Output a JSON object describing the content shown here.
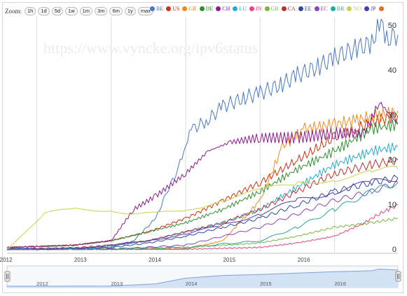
{
  "toolbar": {
    "zoom_label": "Zoom:",
    "buttons": [
      "1h",
      "1d",
      "5d",
      "1w",
      "1m",
      "3m",
      "6m",
      "1y",
      "max"
    ]
  },
  "watermark": "https://www.vyncke.org/ipv6status",
  "chart_data": {
    "type": "line",
    "title": "",
    "xlabel": "",
    "ylabel": "",
    "x_ticks": [
      "2012",
      "2013",
      "2014",
      "2015",
      "2016"
    ],
    "x_range": [
      2011.6,
      2016.85
    ],
    "y_ticks": [
      0,
      10,
      20,
      30,
      40,
      50
    ],
    "ylim": [
      -0.5,
      52
    ],
    "grid": "vertical lines at years",
    "legend": "top, horizontal",
    "navigator_ticks": [
      "2012",
      "2013",
      "2014",
      "2015",
      "2016"
    ],
    "series": [
      {
        "name": "BE",
        "color": "#4a78c4",
        "points": [
          [
            2011.6,
            0.1
          ],
          [
            2012.5,
            0.2
          ],
          [
            2013.0,
            0.5
          ],
          [
            2013.3,
            2
          ],
          [
            2013.6,
            7
          ],
          [
            2013.75,
            13
          ],
          [
            2013.9,
            18
          ],
          [
            2014.0,
            24
          ],
          [
            2014.1,
            27
          ],
          [
            2014.3,
            29
          ],
          [
            2014.5,
            32
          ],
          [
            2014.8,
            34
          ],
          [
            2015.0,
            35
          ],
          [
            2015.3,
            37
          ],
          [
            2015.5,
            39
          ],
          [
            2015.8,
            41
          ],
          [
            2016.0,
            43
          ],
          [
            2016.3,
            45
          ],
          [
            2016.5,
            46
          ],
          [
            2016.6,
            51
          ],
          [
            2016.7,
            47
          ],
          [
            2016.85,
            48
          ]
        ]
      },
      {
        "name": "US",
        "color": "#cc3311",
        "points": [
          [
            2011.6,
            0.5
          ],
          [
            2012.5,
            1
          ],
          [
            2013.0,
            2
          ],
          [
            2013.5,
            4
          ],
          [
            2014.0,
            7
          ],
          [
            2014.5,
            11
          ],
          [
            2015.0,
            15
          ],
          [
            2015.5,
            20
          ],
          [
            2016.0,
            25
          ],
          [
            2016.3,
            27
          ],
          [
            2016.6,
            29
          ],
          [
            2016.85,
            30
          ]
        ]
      },
      {
        "name": "GR",
        "color": "#f08a1c",
        "points": [
          [
            2011.6,
            0
          ],
          [
            2014.0,
            0.1
          ],
          [
            2014.5,
            2
          ],
          [
            2015.0,
            11
          ],
          [
            2015.3,
            23
          ],
          [
            2015.6,
            27
          ],
          [
            2016.0,
            28
          ],
          [
            2016.3,
            29
          ],
          [
            2016.6,
            30
          ],
          [
            2016.85,
            31
          ]
        ]
      },
      {
        "name": "DE",
        "color": "#2f8f2f",
        "points": [
          [
            2011.6,
            0.5
          ],
          [
            2012.5,
            1
          ],
          [
            2013.0,
            2
          ],
          [
            2013.5,
            4
          ],
          [
            2014.0,
            6
          ],
          [
            2014.5,
            9
          ],
          [
            2015.0,
            13
          ],
          [
            2015.5,
            18
          ],
          [
            2016.0,
            22
          ],
          [
            2016.5,
            27
          ],
          [
            2016.85,
            28
          ]
        ]
      },
      {
        "name": "CH",
        "color": "#8e1b8e",
        "points": [
          [
            2011.6,
            0.5
          ],
          [
            2012.5,
            1
          ],
          [
            2013.0,
            2
          ],
          [
            2013.3,
            9
          ],
          [
            2013.6,
            12
          ],
          [
            2014.0,
            17
          ],
          [
            2014.3,
            22
          ],
          [
            2014.6,
            24
          ],
          [
            2015.0,
            25
          ],
          [
            2015.5,
            25
          ],
          [
            2016.0,
            26
          ],
          [
            2016.4,
            26
          ],
          [
            2016.6,
            33
          ],
          [
            2016.85,
            28
          ]
        ]
      },
      {
        "name": "LU",
        "color": "#29aacc",
        "points": [
          [
            2011.6,
            0.2
          ],
          [
            2012.5,
            0.3
          ],
          [
            2013.0,
            0.8
          ],
          [
            2013.5,
            2
          ],
          [
            2014.0,
            4
          ],
          [
            2014.5,
            6
          ],
          [
            2015.0,
            9
          ],
          [
            2015.5,
            14
          ],
          [
            2016.0,
            19
          ],
          [
            2016.5,
            22
          ],
          [
            2016.85,
            23
          ]
        ]
      },
      {
        "name": "IN",
        "color": "#e6457f",
        "points": [
          [
            2011.6,
            0
          ],
          [
            2014.0,
            0.1
          ],
          [
            2015.0,
            0.5
          ],
          [
            2015.5,
            1.5
          ],
          [
            2016.0,
            3
          ],
          [
            2016.4,
            6
          ],
          [
            2016.6,
            8
          ],
          [
            2016.85,
            10
          ]
        ]
      },
      {
        "name": "GB",
        "color": "#78b83a",
        "points": [
          [
            2011.6,
            0
          ],
          [
            2012.5,
            0.1
          ],
          [
            2013.0,
            0.2
          ],
          [
            2014.0,
            0.5
          ],
          [
            2015.0,
            1.5
          ],
          [
            2015.5,
            3
          ],
          [
            2016.0,
            5
          ],
          [
            2016.5,
            6
          ],
          [
            2016.85,
            7
          ]
        ]
      },
      {
        "name": "CA",
        "color": "#b83030",
        "points": [
          [
            2011.6,
            0.2
          ],
          [
            2012.5,
            0.4
          ],
          [
            2013.0,
            1
          ],
          [
            2013.5,
            2
          ],
          [
            2014.0,
            4
          ],
          [
            2014.5,
            6
          ],
          [
            2015.0,
            9
          ],
          [
            2015.5,
            13
          ],
          [
            2016.0,
            17
          ],
          [
            2016.5,
            19
          ],
          [
            2016.85,
            20
          ]
        ]
      },
      {
        "name": "EE",
        "color": "#2e4b9a",
        "points": [
          [
            2011.6,
            0
          ],
          [
            2012.5,
            0.2
          ],
          [
            2013.0,
            0.5
          ],
          [
            2013.5,
            1.5
          ],
          [
            2014.0,
            3
          ],
          [
            2014.5,
            5
          ],
          [
            2015.0,
            7
          ],
          [
            2015.5,
            10
          ],
          [
            2016.0,
            13
          ],
          [
            2016.5,
            15
          ],
          [
            2016.85,
            16
          ]
        ]
      },
      {
        "name": "EC",
        "color": "#8a46b8",
        "points": [
          [
            2011.6,
            0
          ],
          [
            2013.0,
            0.1
          ],
          [
            2014.0,
            1
          ],
          [
            2014.5,
            3
          ],
          [
            2015.0,
            5
          ],
          [
            2015.5,
            8
          ],
          [
            2016.0,
            11
          ],
          [
            2016.5,
            13
          ],
          [
            2016.85,
            15
          ]
        ]
      },
      {
        "name": "BR",
        "color": "#27a89a",
        "points": [
          [
            2011.6,
            0
          ],
          [
            2013.0,
            0.1
          ],
          [
            2014.0,
            0.5
          ],
          [
            2015.0,
            2
          ],
          [
            2015.5,
            5
          ],
          [
            2016.0,
            9
          ],
          [
            2016.5,
            13
          ],
          [
            2016.85,
            15
          ]
        ]
      },
      {
        "name": "NO",
        "color": "#c8d24a",
        "points": [
          [
            2011.6,
            0
          ],
          [
            2011.9,
            5
          ],
          [
            2012.1,
            8
          ],
          [
            2012.5,
            9
          ],
          [
            2013.0,
            9
          ],
          [
            2013.3,
            8
          ],
          [
            2013.6,
            8
          ],
          [
            2014.0,
            9
          ],
          [
            2014.5,
            11
          ],
          [
            2015.0,
            13
          ],
          [
            2015.5,
            15
          ],
          [
            2016.0,
            16
          ],
          [
            2016.5,
            17
          ],
          [
            2016.85,
            18
          ]
        ]
      },
      {
        "name": "JP",
        "color": "#4b3cb0",
        "points": [
          [
            2011.6,
            0.1
          ],
          [
            2012.5,
            0.3
          ],
          [
            2013.0,
            1
          ],
          [
            2013.5,
            2
          ],
          [
            2014.0,
            3.5
          ],
          [
            2014.5,
            5.5
          ],
          [
            2015.0,
            8
          ],
          [
            2015.5,
            11
          ],
          [
            2016.0,
            13
          ],
          [
            2016.5,
            15
          ],
          [
            2016.85,
            16
          ]
        ]
      }
    ],
    "legend_overflow_color": "#e0701f",
    "navigator_points": [
      [
        2011.6,
        0.1
      ],
      [
        2012.5,
        0.2
      ],
      [
        2013.0,
        0.5
      ],
      [
        2013.6,
        7
      ],
      [
        2014.0,
        24
      ],
      [
        2014.5,
        32
      ],
      [
        2015.0,
        35
      ],
      [
        2015.5,
        39
      ],
      [
        2016.0,
        43
      ],
      [
        2016.5,
        46
      ],
      [
        2016.6,
        51
      ],
      [
        2016.85,
        48
      ]
    ]
  }
}
